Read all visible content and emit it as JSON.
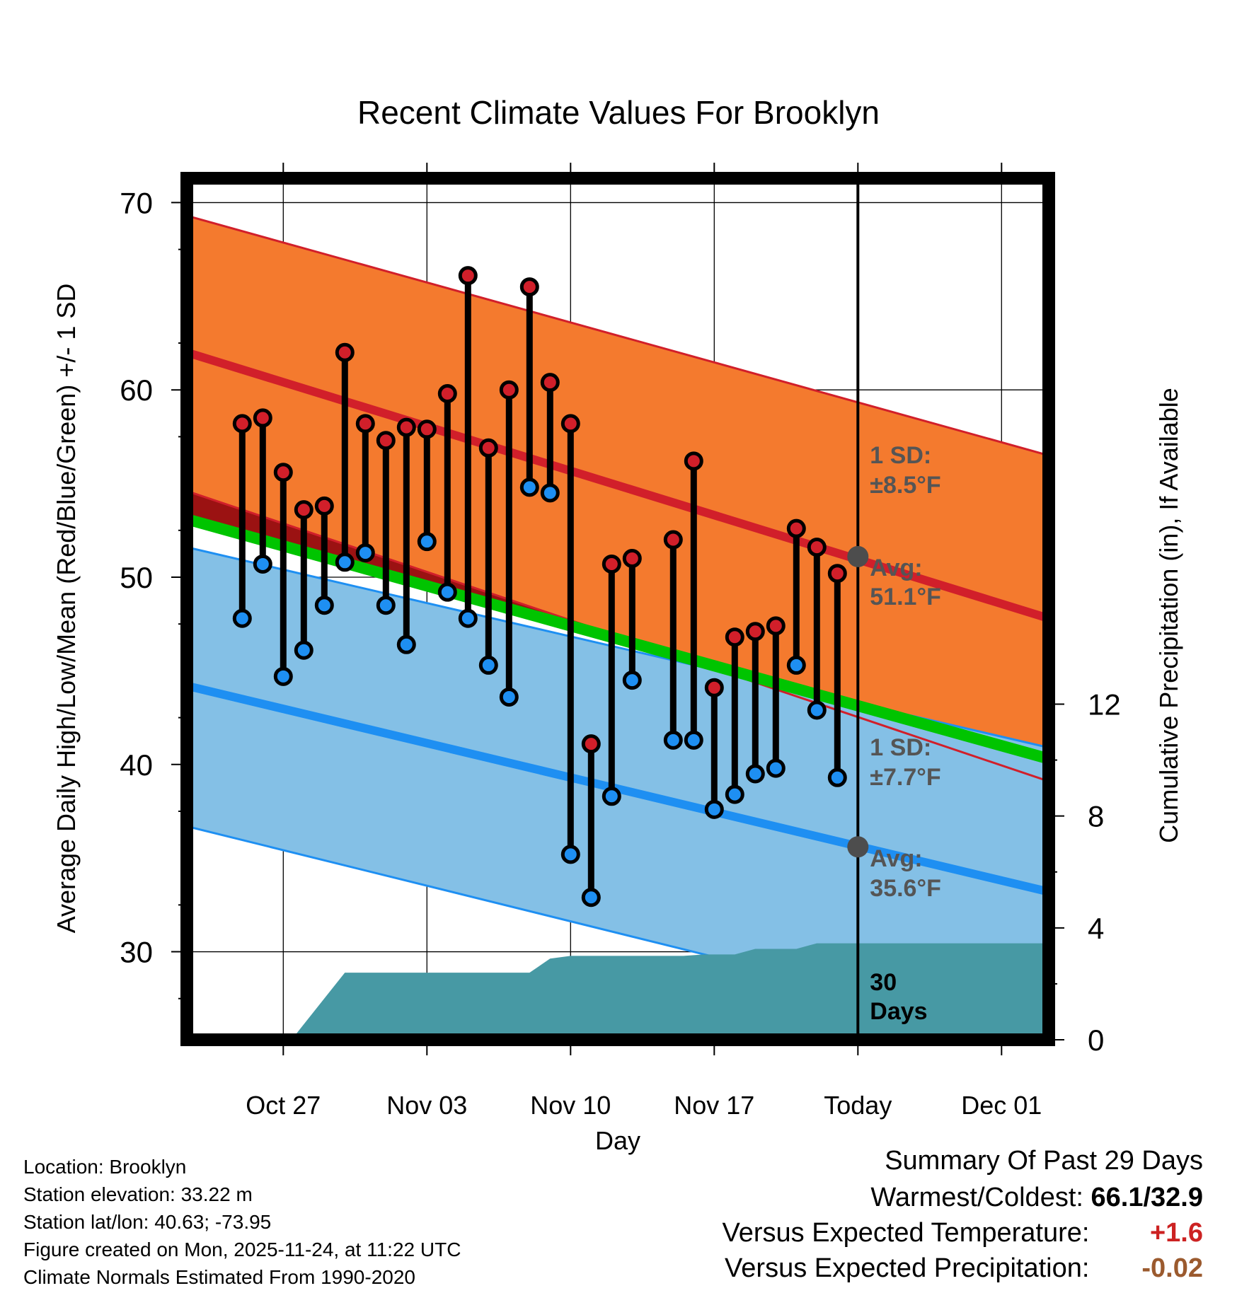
{
  "chart_data": {
    "type": "line",
    "title": "Recent Climate Values For Brooklyn",
    "xlabel": "Day",
    "ylabel_left": "Average Daily High/Low/Mean (Red/Blue/Green) +/- 1 SD",
    "ylabel_right": "Cumulative Precipitation (in), If Available",
    "ylim_left": [
      25.3,
      71.3
    ],
    "ylim_right": [
      0,
      30.8
    ],
    "yticks_left": [
      30,
      40,
      50,
      60,
      70
    ],
    "yticks_right": [
      0,
      4,
      8,
      12
    ],
    "xlim_days": [
      -32.7,
      9.3
    ],
    "xticks": [
      {
        "day": -28,
        "label": "Oct 27"
      },
      {
        "day": -21,
        "label": "Nov 03"
      },
      {
        "day": -14,
        "label": "Nov 10"
      },
      {
        "day": -7,
        "label": "Nov 17"
      },
      {
        "day": 0,
        "label": "Today"
      },
      {
        "day": 7,
        "label": "Dec 01"
      }
    ],
    "normals": {
      "high_avg": [
        62.0,
        47.8
      ],
      "high_upper": [
        69.3,
        56.5
      ],
      "high_lower": [
        54.6,
        39.1
      ],
      "low_avg": [
        44.2,
        33.2
      ],
      "low_upper": [
        51.6,
        40.9
      ],
      "low_lower": [
        36.7,
        25.3
      ],
      "mean_avg": [
        53.1,
        40.3
      ]
    },
    "colors": {
      "high_band": "#f47a2e",
      "high_line": "#d11f2a",
      "low_band": "#84c0e6",
      "low_line": "#1e8ff2",
      "mean_line": "#00c400",
      "dark_red_band": "#9b1212",
      "precip": "#4799a4",
      "marker_gray": "#4d4d4d",
      "label_gray": "#555555"
    },
    "daily": [
      {
        "day": -30,
        "high": 58.2,
        "low": 47.8
      },
      {
        "day": -29,
        "high": 58.5,
        "low": 50.7
      },
      {
        "day": -28,
        "high": 55.6,
        "low": 44.7
      },
      {
        "day": -27,
        "high": 53.6,
        "low": 46.1
      },
      {
        "day": -26,
        "high": 53.8,
        "low": 48.5
      },
      {
        "day": -25,
        "high": 62.0,
        "low": 50.8
      },
      {
        "day": -24,
        "high": 58.2,
        "low": 51.3
      },
      {
        "day": -23,
        "high": 57.3,
        "low": 48.5
      },
      {
        "day": -22,
        "high": 58.0,
        "low": 46.4
      },
      {
        "day": -21,
        "high": 57.9,
        "low": 51.9
      },
      {
        "day": -20,
        "high": 59.8,
        "low": 49.2
      },
      {
        "day": -19,
        "high": 66.1,
        "low": 47.8
      },
      {
        "day": -18,
        "high": 56.9,
        "low": 45.3
      },
      {
        "day": -17,
        "high": 60.0,
        "low": 43.6
      },
      {
        "day": -16,
        "high": 65.5,
        "low": 54.8
      },
      {
        "day": -15,
        "high": 60.4,
        "low": 54.5
      },
      {
        "day": -14,
        "high": 58.2,
        "low": 35.2
      },
      {
        "day": -13,
        "high": 41.1,
        "low": 32.9
      },
      {
        "day": -12,
        "high": 50.7,
        "low": 38.3
      },
      {
        "day": -11,
        "high": 51.0,
        "low": 44.5
      },
      {
        "day": -9,
        "high": 52.0,
        "low": 41.3
      },
      {
        "day": -8,
        "high": 56.2,
        "low": 41.3
      },
      {
        "day": -7,
        "high": 44.1,
        "low": 37.6
      },
      {
        "day": -6,
        "high": 46.8,
        "low": 38.4
      },
      {
        "day": -5,
        "high": 47.1,
        "low": 39.5
      },
      {
        "day": -4,
        "high": 47.4,
        "low": 39.8
      },
      {
        "day": -3,
        "high": 52.6,
        "low": 45.3
      },
      {
        "day": -2,
        "high": 51.6,
        "low": 42.9
      },
      {
        "day": -1,
        "high": 50.2,
        "low": 39.3
      }
    ],
    "precip_cumulative": [
      {
        "day": -27.6,
        "in": 0
      },
      {
        "day": -25.0,
        "in": 2.4
      },
      {
        "day": -16.0,
        "in": 2.4
      },
      {
        "day": -15.0,
        "in": 2.9
      },
      {
        "day": -14.0,
        "in": 3.0
      },
      {
        "day": -8.5,
        "in": 3.0
      },
      {
        "day": -7.5,
        "in": 3.05
      },
      {
        "day": -6.0,
        "in": 3.05
      },
      {
        "day": -5.0,
        "in": 3.25
      },
      {
        "day": -3.0,
        "in": 3.25
      },
      {
        "day": -2.0,
        "in": 3.45
      },
      {
        "day": 9.3,
        "in": 3.45
      }
    ],
    "annotations": {
      "high_sd_title": "1 SD:",
      "high_sd_value": "±8.5°F",
      "high_avg_title": "Avg:",
      "high_avg_value": "51.1°F",
      "high_avg_today": 51.1,
      "low_sd_title": "1 SD:",
      "low_sd_value": "±7.7°F",
      "low_avg_title": "Avg:",
      "low_avg_value": "35.6°F",
      "low_avg_today": 35.6,
      "days_count": "30",
      "days_word": "Days"
    }
  },
  "info": {
    "location": "Location: Brooklyn",
    "elevation": "Station elevation: 33.22 m",
    "latlon": "Station lat/lon: 40.63; -73.95",
    "created": "Figure created on Mon, 2025-11-24, at 11:22 UTC",
    "normals": "Climate Normals Estimated From 1990-2020"
  },
  "summary": {
    "title": "Summary Of Past 29 Days",
    "warm_cold_label": "Warmest/Coldest:",
    "warm_cold_value": "66.1/32.9",
    "temp_label": "Versus Expected Temperature:",
    "temp_value": "+1.6",
    "temp_color": "#cc2222",
    "precip_label": "Versus Expected Precipitation:",
    "precip_value": "-0.02",
    "precip_color": "#9b5a2e"
  }
}
